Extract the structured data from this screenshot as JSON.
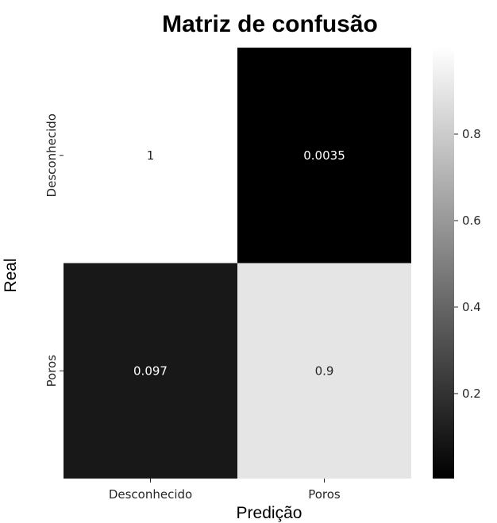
{
  "chart_data": {
    "type": "heatmap",
    "title": "Matriz de confusão",
    "xlabel": "Predição",
    "ylabel": "Real",
    "x_categories": [
      "Desconhecido",
      "Poros"
    ],
    "y_categories": [
      "Desconhecido",
      "Poros"
    ],
    "values": [
      [
        1,
        0.0035
      ],
      [
        0.097,
        0.9
      ]
    ],
    "cell_labels": [
      [
        "1",
        "0.0035"
      ],
      [
        "0.097",
        "0.9"
      ]
    ],
    "colormap": "gray",
    "colorbar": {
      "range": [
        0.0035,
        1
      ],
      "ticks": [
        0.2,
        0.4,
        0.6,
        0.8
      ],
      "tick_labels": [
        "0.2",
        "0.4",
        "0.6",
        "0.8"
      ]
    },
    "annotation_colors": {
      "on_light": "#262626",
      "on_dark": "#ffffff"
    }
  }
}
